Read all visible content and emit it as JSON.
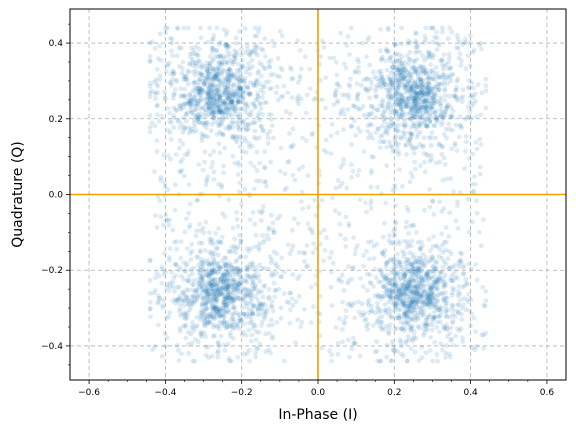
{
  "chart_data": {
    "type": "scatter",
    "title": "",
    "xlabel": "In-Phase (I)",
    "ylabel": "Quadrature (Q)",
    "xlim": [
      -0.65,
      0.65
    ],
    "ylim": [
      -0.49,
      0.49
    ],
    "x_ticks": [
      -0.6,
      -0.4,
      -0.2,
      0.0,
      0.2,
      0.4,
      0.6
    ],
    "x_tick_labels": [
      "−0.6",
      "−0.4",
      "−0.2",
      "0.0",
      "0.2",
      "0.4",
      "0.6"
    ],
    "y_ticks": [
      -0.4,
      -0.2,
      0.0,
      0.2,
      0.4
    ],
    "y_tick_labels": [
      "−0.4",
      "−0.2",
      "0.0",
      "0.2",
      "0.4"
    ],
    "grid": true,
    "legend": "none",
    "reference_lines": {
      "x": 0,
      "y": 0,
      "color": "#f2a000"
    },
    "point_color": "#1f77b4",
    "point_alpha": 0.15,
    "series": [
      {
        "cluster_centers": [
          [
            -0.26,
            0.27
          ],
          [
            0.25,
            0.26
          ],
          [
            -0.26,
            -0.26
          ],
          [
            0.25,
            -0.26
          ]
        ],
        "cluster_spread": 0.065,
        "extent": 0.44,
        "approx_point_count": 4000
      }
    ]
  }
}
